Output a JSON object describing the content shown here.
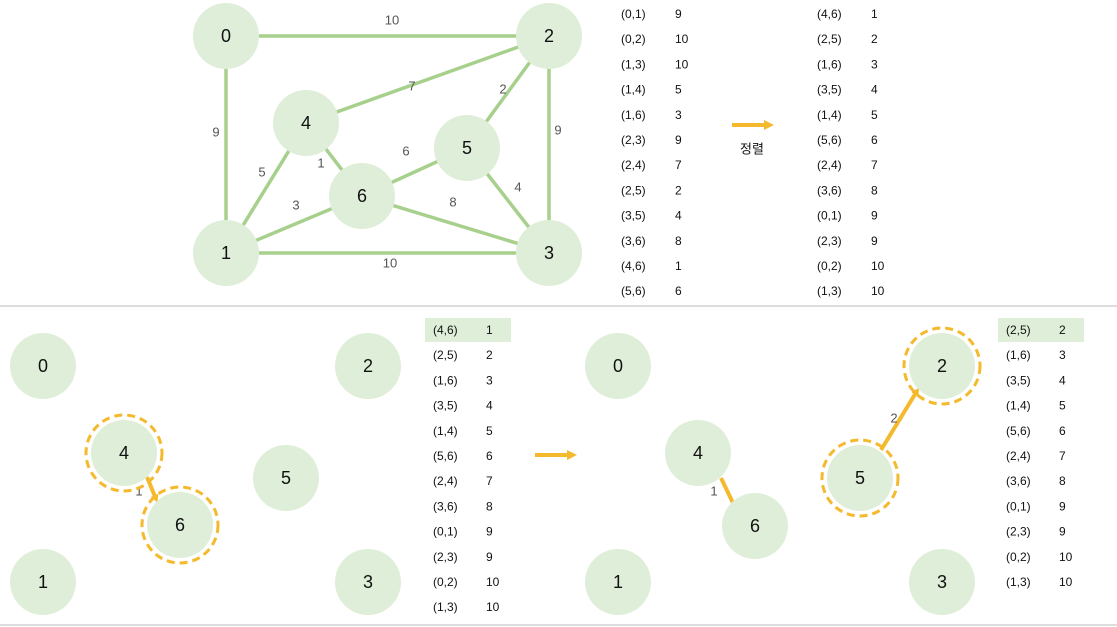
{
  "top": {
    "nodes": [
      "0",
      "1",
      "2",
      "3",
      "4",
      "5",
      "6"
    ],
    "edge_weights": {
      "e01": "9",
      "e02": "10",
      "e13": "10",
      "e14": "5",
      "e16": "3",
      "e23": "9",
      "e24": "7",
      "e25": "2",
      "e35": "4",
      "e36": "8",
      "e46": "1",
      "e56": "6"
    },
    "edge_table": [
      {
        "edge": "(0,1)",
        "w": "9"
      },
      {
        "edge": "(0,2)",
        "w": "10"
      },
      {
        "edge": "(1,3)",
        "w": "10"
      },
      {
        "edge": "(1,4)",
        "w": "5"
      },
      {
        "edge": "(1,6)",
        "w": "3"
      },
      {
        "edge": "(2,3)",
        "w": "9"
      },
      {
        "edge": "(2,4)",
        "w": "7"
      },
      {
        "edge": "(2,5)",
        "w": "2"
      },
      {
        "edge": "(3,5)",
        "w": "4"
      },
      {
        "edge": "(3,6)",
        "w": "8"
      },
      {
        "edge": "(4,6)",
        "w": "1"
      },
      {
        "edge": "(5,6)",
        "w": "6"
      }
    ],
    "sort_label": "정렬",
    "sorted_table": [
      {
        "edge": "(4,6)",
        "w": "1"
      },
      {
        "edge": "(2,5)",
        "w": "2"
      },
      {
        "edge": "(1,6)",
        "w": "3"
      },
      {
        "edge": "(3,5)",
        "w": "4"
      },
      {
        "edge": "(1,4)",
        "w": "5"
      },
      {
        "edge": "(5,6)",
        "w": "6"
      },
      {
        "edge": "(2,4)",
        "w": "7"
      },
      {
        "edge": "(3,6)",
        "w": "8"
      },
      {
        "edge": "(0,1)",
        "w": "9"
      },
      {
        "edge": "(2,3)",
        "w": "9"
      },
      {
        "edge": "(0,2)",
        "w": "10"
      },
      {
        "edge": "(1,3)",
        "w": "10"
      }
    ]
  },
  "step1": {
    "nodes": [
      "0",
      "1",
      "2",
      "3",
      "4",
      "5",
      "6"
    ],
    "highlighted_nodes": [
      "4",
      "6"
    ],
    "selected_edge": {
      "edge": "(4,6)",
      "w": "1"
    },
    "table": [
      {
        "edge": "(4,6)",
        "w": "1"
      },
      {
        "edge": "(2,5)",
        "w": "2"
      },
      {
        "edge": "(1,6)",
        "w": "3"
      },
      {
        "edge": "(3,5)",
        "w": "4"
      },
      {
        "edge": "(1,4)",
        "w": "5"
      },
      {
        "edge": "(5,6)",
        "w": "6"
      },
      {
        "edge": "(2,4)",
        "w": "7"
      },
      {
        "edge": "(3,6)",
        "w": "8"
      },
      {
        "edge": "(0,1)",
        "w": "9"
      },
      {
        "edge": "(2,3)",
        "w": "9"
      },
      {
        "edge": "(0,2)",
        "w": "10"
      },
      {
        "edge": "(1,3)",
        "w": "10"
      }
    ]
  },
  "step2": {
    "nodes": [
      "0",
      "1",
      "2",
      "3",
      "4",
      "5",
      "6"
    ],
    "highlighted_nodes": [
      "5",
      "2"
    ],
    "edge_46_weight": "1",
    "selected_edge": {
      "edge": "(2,5)",
      "w": "2"
    },
    "table": [
      {
        "edge": "(2,5)",
        "w": "2"
      },
      {
        "edge": "(1,6)",
        "w": "3"
      },
      {
        "edge": "(3,5)",
        "w": "4"
      },
      {
        "edge": "(1,4)",
        "w": "5"
      },
      {
        "edge": "(5,6)",
        "w": "6"
      },
      {
        "edge": "(2,4)",
        "w": "7"
      },
      {
        "edge": "(3,6)",
        "w": "8"
      },
      {
        "edge": "(0,1)",
        "w": "9"
      },
      {
        "edge": "(2,3)",
        "w": "9"
      },
      {
        "edge": "(0,2)",
        "w": "10"
      },
      {
        "edge": "(1,3)",
        "w": "10"
      }
    ]
  },
  "colors": {
    "node_fill": "#dfeed8",
    "edge_green": "#a8d08d",
    "accent": "#f4b92c",
    "highlight_row": "#dfeed8",
    "divider": "#bbbbbb"
  }
}
